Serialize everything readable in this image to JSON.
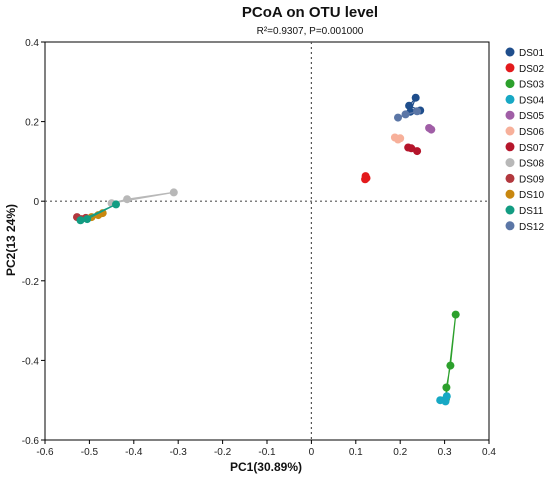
{
  "chart_data": {
    "type": "scatter",
    "title": "PCoA on OTU level",
    "subtitle": "R²=0.9307, P=0.001000",
    "xlabel": "PC1(30.89%)",
    "ylabel": "PC2(13 24%)",
    "xlim": [
      -0.6,
      0.4
    ],
    "ylim": [
      -0.6,
      0.4
    ],
    "xticks": [
      "-0.6",
      "-0.5",
      "-0.4",
      "-0.3",
      "-0.2",
      "-0.1",
      "0",
      "0.1",
      "0.2",
      "0.3",
      "0.4"
    ],
    "yticks": [
      "0.4",
      "0.2",
      "0",
      "-0.2",
      "-0.4",
      "-0.6"
    ],
    "grid": false,
    "reference_lines": {
      "x": 0,
      "y": 0,
      "style": "dotted"
    },
    "legend_position": "right",
    "series": [
      {
        "name": "DS01",
        "color": "#1f4e8c",
        "points": [
          [
            0.22,
            0.24
          ],
          [
            0.235,
            0.26
          ],
          [
            0.223,
            0.225
          ],
          [
            0.245,
            0.228
          ]
        ]
      },
      {
        "name": "DS02",
        "color": "#e31a1c",
        "points": [
          [
            0.122,
            0.063
          ],
          [
            0.124,
            0.058
          ],
          [
            0.121,
            0.055
          ]
        ]
      },
      {
        "name": "DS03",
        "color": "#2ca02c",
        "points": [
          [
            0.325,
            -0.285
          ],
          [
            0.313,
            -0.413
          ],
          [
            0.304,
            -0.468
          ],
          [
            0.303,
            -0.497
          ]
        ]
      },
      {
        "name": "DS04",
        "color": "#17a8c4",
        "points": [
          [
            0.29,
            -0.5
          ],
          [
            0.302,
            -0.503
          ],
          [
            0.305,
            -0.49
          ]
        ]
      },
      {
        "name": "DS05",
        "color": "#a05ea6",
        "points": [
          [
            0.27,
            0.18
          ],
          [
            0.265,
            0.184
          ]
        ]
      },
      {
        "name": "DS06",
        "color": "#f7b09a",
        "points": [
          [
            0.188,
            0.16
          ],
          [
            0.2,
            0.158
          ],
          [
            0.195,
            0.155
          ]
        ]
      },
      {
        "name": "DS07",
        "color": "#b5152b",
        "points": [
          [
            0.218,
            0.135
          ],
          [
            0.225,
            0.133
          ],
          [
            0.238,
            0.126
          ]
        ]
      },
      {
        "name": "DS08",
        "color": "#b8b8b8",
        "points": [
          [
            -0.31,
            0.022
          ],
          [
            -0.415,
            0.005
          ],
          [
            -0.45,
            -0.005
          ]
        ]
      },
      {
        "name": "DS09",
        "color": "#b2383e",
        "points": [
          [
            -0.528,
            -0.04
          ],
          [
            -0.518,
            -0.045
          ],
          [
            -0.508,
            -0.042
          ]
        ]
      },
      {
        "name": "DS10",
        "color": "#c8870f",
        "points": [
          [
            -0.495,
            -0.04
          ],
          [
            -0.47,
            -0.03
          ],
          [
            -0.48,
            -0.035
          ]
        ]
      },
      {
        "name": "DS11",
        "color": "#129c82",
        "points": [
          [
            -0.52,
            -0.048
          ],
          [
            -0.505,
            -0.045
          ],
          [
            -0.44,
            -0.008
          ]
        ]
      },
      {
        "name": "DS12",
        "color": "#5b76a6",
        "points": [
          [
            0.195,
            0.21
          ],
          [
            0.238,
            0.226
          ],
          [
            0.212,
            0.218
          ]
        ]
      }
    ]
  }
}
